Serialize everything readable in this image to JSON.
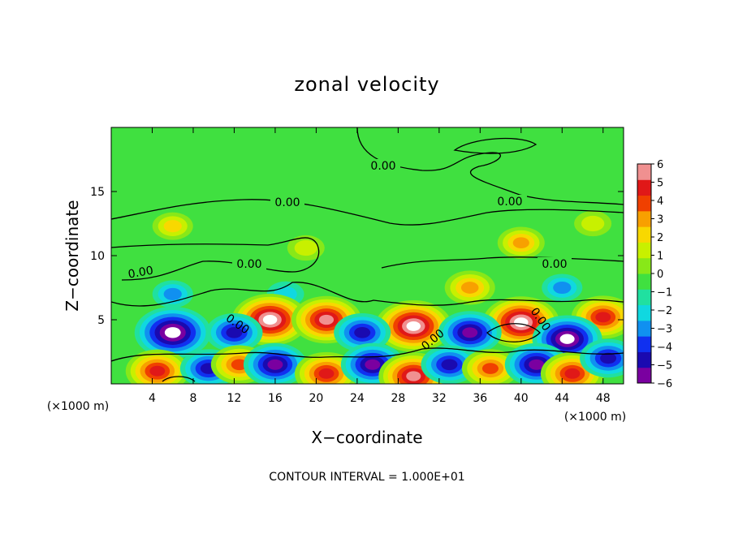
{
  "chart_data": {
    "type": "heatmap",
    "title": "zonal velocity",
    "xlabel": "X−coordinate",
    "ylabel": "Z−coordinate",
    "x_unit_left": "(×1000 m)",
    "x_unit_right": "(×1000 m)",
    "xlim": [
      0,
      50
    ],
    "ylim": [
      0,
      20
    ],
    "x_ticks": [
      4,
      8,
      12,
      16,
      20,
      24,
      28,
      32,
      36,
      40,
      44,
      48
    ],
    "y_ticks": [
      5,
      10,
      15
    ],
    "colorbar": {
      "ticks": [
        6,
        5,
        4,
        3,
        2,
        1,
        0,
        "−1",
        "−2",
        "−3",
        "−4",
        "−5",
        "−6"
      ],
      "range": [
        -6,
        6
      ],
      "colors": [
        "#7a00a0",
        "#1a0ab0",
        "#1030f0",
        "#1090f0",
        "#10d8e0",
        "#20e0a0",
        "#40e040",
        "#88e818",
        "#c8f000",
        "#f8d800",
        "#f8a000",
        "#f04000",
        "#e01818",
        "#f09090"
      ]
    },
    "contour_level_label": "0.00",
    "contour_interval_text": "CONTOUR INTERVAL = 1.000E+01",
    "field_features": [
      {
        "sign": "positive",
        "x": 6,
        "z": 12.3,
        "amp": 2.5
      },
      {
        "sign": "positive",
        "x": 19,
        "z": 10.6,
        "amp": 2.0
      },
      {
        "sign": "positive",
        "x": 40,
        "z": 11.0,
        "amp": 3.5
      },
      {
        "sign": "positive",
        "x": 47,
        "z": 12.5,
        "amp": 2.0
      },
      {
        "sign": "positive",
        "x": 35,
        "z": 7.5,
        "amp": 4.0
      },
      {
        "sign": "negative",
        "x": 6,
        "z": 7.0,
        "amp": 2.5
      },
      {
        "sign": "negative",
        "x": 17,
        "z": 7.0,
        "amp": 2.0
      },
      {
        "sign": "negative",
        "x": 44,
        "z": 7.5,
        "amp": 2.5
      },
      {
        "sign": "negative",
        "x": 6,
        "z": 4.0,
        "amp": 8.0
      },
      {
        "sign": "positive",
        "x": 15.5,
        "z": 5.0,
        "amp": 8.0
      },
      {
        "sign": "positive",
        "x": 21,
        "z": 5.0,
        "amp": 7.0
      },
      {
        "sign": "positive",
        "x": 29.5,
        "z": 4.5,
        "amp": 8.0
      },
      {
        "sign": "positive",
        "x": 40,
        "z": 4.8,
        "amp": 8.0
      },
      {
        "sign": "positive",
        "x": 48,
        "z": 5.2,
        "amp": 6.0
      },
      {
        "sign": "negative",
        "x": 12,
        "z": 4.0,
        "amp": 5.0
      },
      {
        "sign": "negative",
        "x": 24.5,
        "z": 4.0,
        "amp": 5.0
      },
      {
        "sign": "negative",
        "x": 35,
        "z": 4.0,
        "amp": 6.0
      },
      {
        "sign": "negative",
        "x": 44.5,
        "z": 3.5,
        "amp": 7.0
      },
      {
        "sign": "positive",
        "x": 4.5,
        "z": 1.0,
        "amp": 6.0
      },
      {
        "sign": "negative",
        "x": 9.5,
        "z": 1.2,
        "amp": 5.0
      },
      {
        "sign": "positive",
        "x": 12.5,
        "z": 1.5,
        "amp": 5.0
      },
      {
        "sign": "negative",
        "x": 16,
        "z": 1.5,
        "amp": 6.0
      },
      {
        "sign": "positive",
        "x": 21,
        "z": 0.8,
        "amp": 6.0
      },
      {
        "sign": "negative",
        "x": 25.5,
        "z": 1.5,
        "amp": 6.0
      },
      {
        "sign": "positive",
        "x": 29.5,
        "z": 0.6,
        "amp": 7.0
      },
      {
        "sign": "negative",
        "x": 33,
        "z": 1.5,
        "amp": 5.0
      },
      {
        "sign": "positive",
        "x": 37,
        "z": 1.2,
        "amp": 5.0
      },
      {
        "sign": "negative",
        "x": 41.5,
        "z": 1.5,
        "amp": 6.0
      },
      {
        "sign": "positive",
        "x": 45,
        "z": 0.8,
        "amp": 6.0
      },
      {
        "sign": "negative",
        "x": 48.5,
        "z": 2.0,
        "amp": 5.0
      }
    ]
  }
}
